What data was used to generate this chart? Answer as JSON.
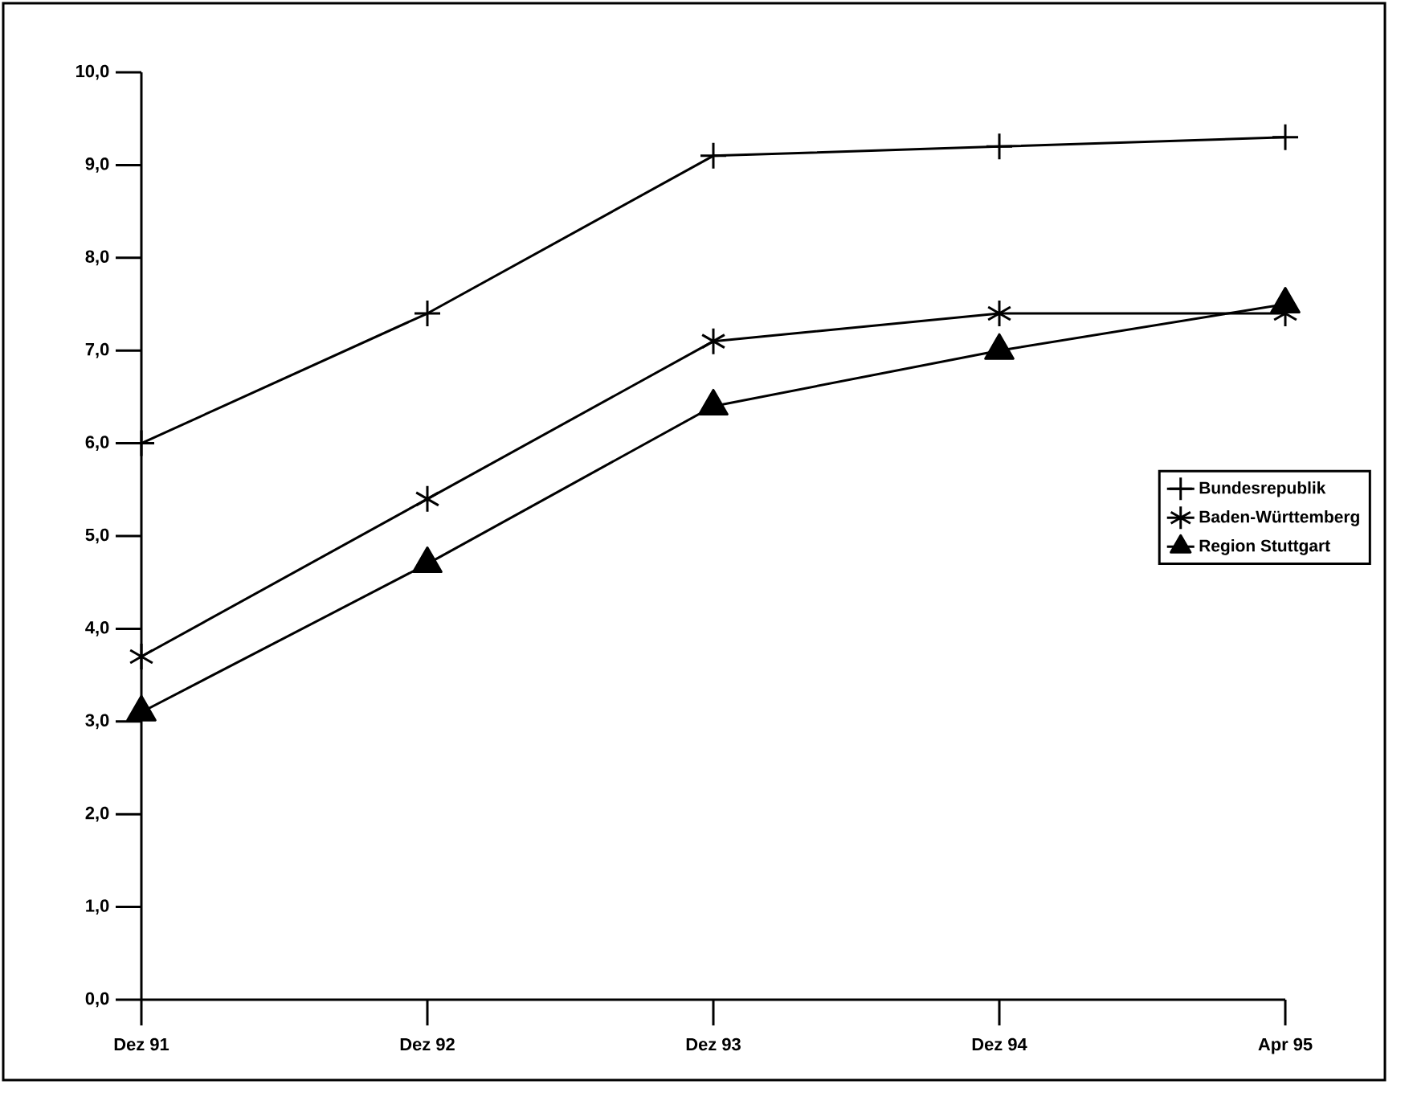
{
  "chart_data": {
    "type": "line",
    "categories": [
      "Dez 91",
      "Dez 92",
      "Dez 93",
      "Dez 94",
      "Apr 95"
    ],
    "series": [
      {
        "name": "Bundesrepublik",
        "color": "#000000",
        "marker": "cross",
        "values": [
          6.0,
          7.4,
          9.1,
          9.2,
          9.3
        ]
      },
      {
        "name": "Baden-Württemberg",
        "color": "#000000",
        "marker": "cross",
        "values": [
          3.7,
          5.4,
          7.1,
          7.4,
          7.4
        ]
      },
      {
        "name": "Region Stuttgart",
        "color": "#000000",
        "marker": "triangle",
        "values": [
          3.1,
          4.7,
          6.4,
          7.0,
          7.5
        ]
      }
    ],
    "ylim": [
      0,
      10
    ],
    "yticks": [
      {
        "value": 0,
        "label": "0,0"
      },
      {
        "value": 1,
        "label": "1,0"
      },
      {
        "value": 2,
        "label": "2,0"
      },
      {
        "value": 3,
        "label": "3,0"
      },
      {
        "value": 4,
        "label": "4,0"
      },
      {
        "value": 5,
        "label": "5,0"
      },
      {
        "value": 6,
        "label": "6,0"
      },
      {
        "value": 7,
        "label": "7,0"
      },
      {
        "value": 8,
        "label": "8,0"
      },
      {
        "value": 9,
        "label": "9,0"
      },
      {
        "value": 10,
        "label": "10,0"
      }
    ],
    "grid": false,
    "legend": "right",
    "line_style": "solid"
  }
}
